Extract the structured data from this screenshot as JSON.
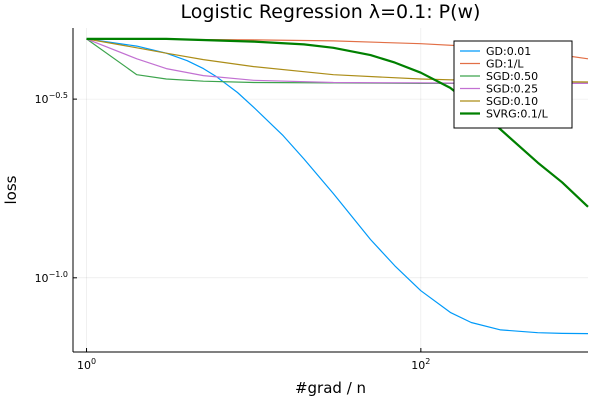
{
  "chart_data": {
    "type": "line",
    "title": "Logistic Regression λ=0.1: P(w)",
    "xlabel": "#grad / n",
    "ylabel": "loss",
    "xscale": "log10",
    "yscale": "log10",
    "xlim": [
      0.83,
      1000
    ],
    "ylim": [
      0.062,
      0.5
    ],
    "xticks": [
      {
        "value": 1,
        "label_base": "10",
        "label_exp": "0"
      },
      {
        "value": 100,
        "label_base": "10",
        "label_exp": "2"
      }
    ],
    "yticks": [
      {
        "value": 0.3162,
        "label_base": "10",
        "label_exp": "−0.5"
      },
      {
        "value": 0.1,
        "label_base": "10",
        "label_exp": "−1.0"
      }
    ],
    "grid": true,
    "legend_position": "top-right",
    "series": [
      {
        "name": "GD:0.01",
        "color": "#009af9",
        "width": 1.2,
        "x": [
          1,
          2,
          3,
          4,
          5,
          6,
          8,
          10,
          15,
          20,
          30,
          50,
          70,
          100,
          150,
          200,
          300,
          500,
          700,
          1000
        ],
        "y": [
          0.466,
          0.445,
          0.425,
          0.405,
          0.385,
          0.365,
          0.33,
          0.3,
          0.25,
          0.215,
          0.172,
          0.128,
          0.108,
          0.092,
          0.08,
          0.075,
          0.0715,
          0.0702,
          0.0699,
          0.0698
        ]
      },
      {
        "name": "GD:1/L",
        "color": "#e26f46",
        "width": 1.2,
        "x": [
          1,
          3,
          10,
          30,
          100,
          200,
          300,
          500,
          700,
          1000
        ],
        "y": [
          0.466,
          0.465,
          0.463,
          0.46,
          0.452,
          0.444,
          0.438,
          0.428,
          0.42,
          0.41
        ]
      },
      {
        "name": "SGD:0.50",
        "color": "#3da44d",
        "width": 1.2,
        "x": [
          1,
          2,
          3,
          5,
          10,
          30,
          100,
          300,
          1000
        ],
        "y": [
          0.466,
          0.37,
          0.36,
          0.355,
          0.352,
          0.351,
          0.35,
          0.35,
          0.35
        ]
      },
      {
        "name": "SGD:0.25",
        "color": "#c271d2",
        "width": 1.2,
        "x": [
          1,
          2,
          3,
          5,
          10,
          30,
          100,
          300,
          1000
        ],
        "y": [
          0.466,
          0.41,
          0.385,
          0.368,
          0.357,
          0.352,
          0.351,
          0.35,
          0.35
        ]
      },
      {
        "name": "SGD:0.10",
        "color": "#ac8d18",
        "width": 1.2,
        "x": [
          1,
          2,
          3,
          5,
          10,
          30,
          100,
          300,
          1000
        ],
        "y": [
          0.466,
          0.44,
          0.425,
          0.408,
          0.39,
          0.37,
          0.36,
          0.355,
          0.353
        ]
      },
      {
        "name": "SVRG:0.1/L",
        "color": "#008000",
        "width": 2.2,
        "x": [
          1,
          3,
          10,
          20,
          30,
          50,
          70,
          100,
          150,
          200,
          300,
          500,
          700,
          1000
        ],
        "y": [
          0.466,
          0.466,
          0.458,
          0.45,
          0.44,
          0.42,
          0.4,
          0.375,
          0.34,
          0.305,
          0.26,
          0.21,
          0.185,
          0.158
        ]
      }
    ]
  }
}
